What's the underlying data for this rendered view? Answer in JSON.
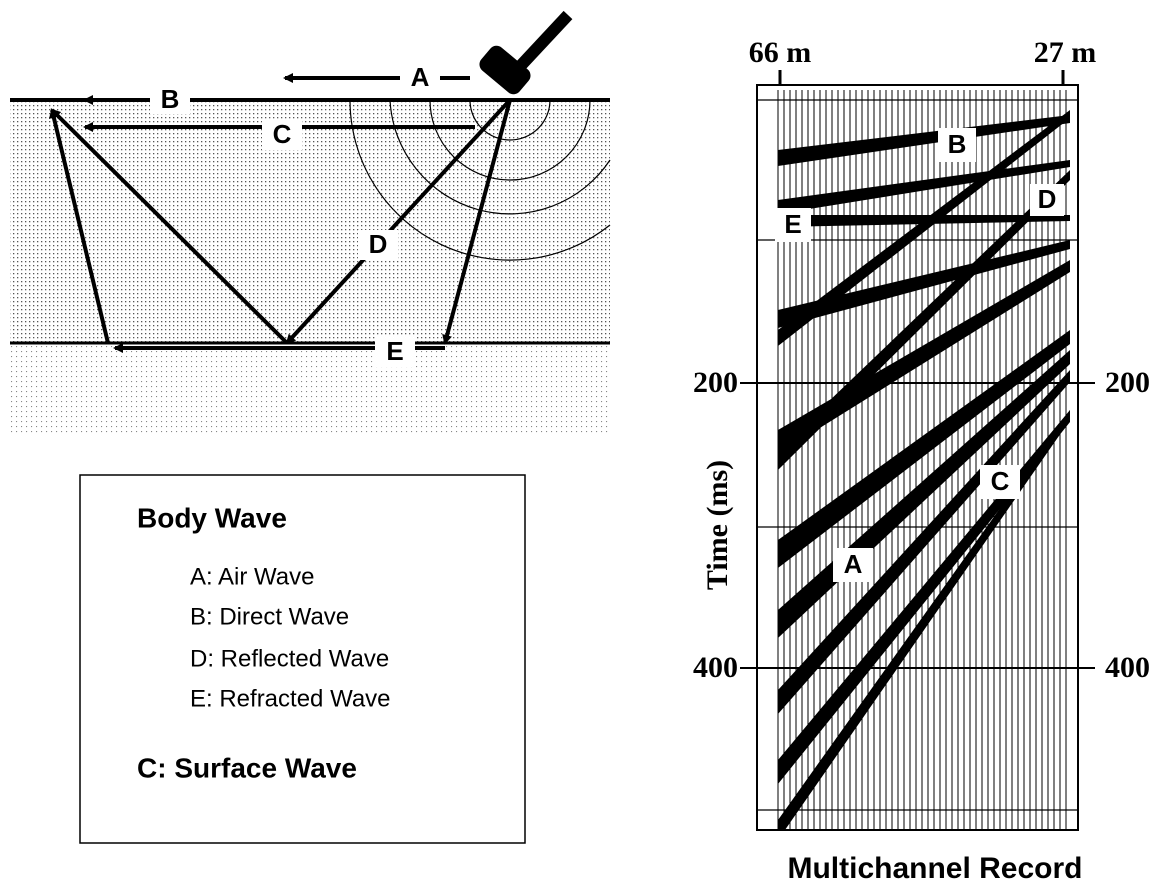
{
  "diagram": {
    "labels": {
      "a": "A",
      "b": "B",
      "c": "C",
      "d": "D",
      "e": "E"
    }
  },
  "legend": {
    "title": "Body Wave",
    "items": [
      "A: Air Wave",
      "B: Direct Wave",
      "D: Reflected Wave",
      "E: Refracted Wave"
    ],
    "surface": "C: Surface Wave"
  },
  "record": {
    "top_labels": [
      "66 m",
      "27 m"
    ],
    "left_ticks": [
      "200",
      "400"
    ],
    "right_ticks": [
      "200",
      "400"
    ],
    "axis_label": "Time (ms)",
    "labels": {
      "b": "B",
      "d": "D",
      "e": "E",
      "c": "C",
      "a": "A"
    },
    "caption": "Multichannel Record"
  }
}
